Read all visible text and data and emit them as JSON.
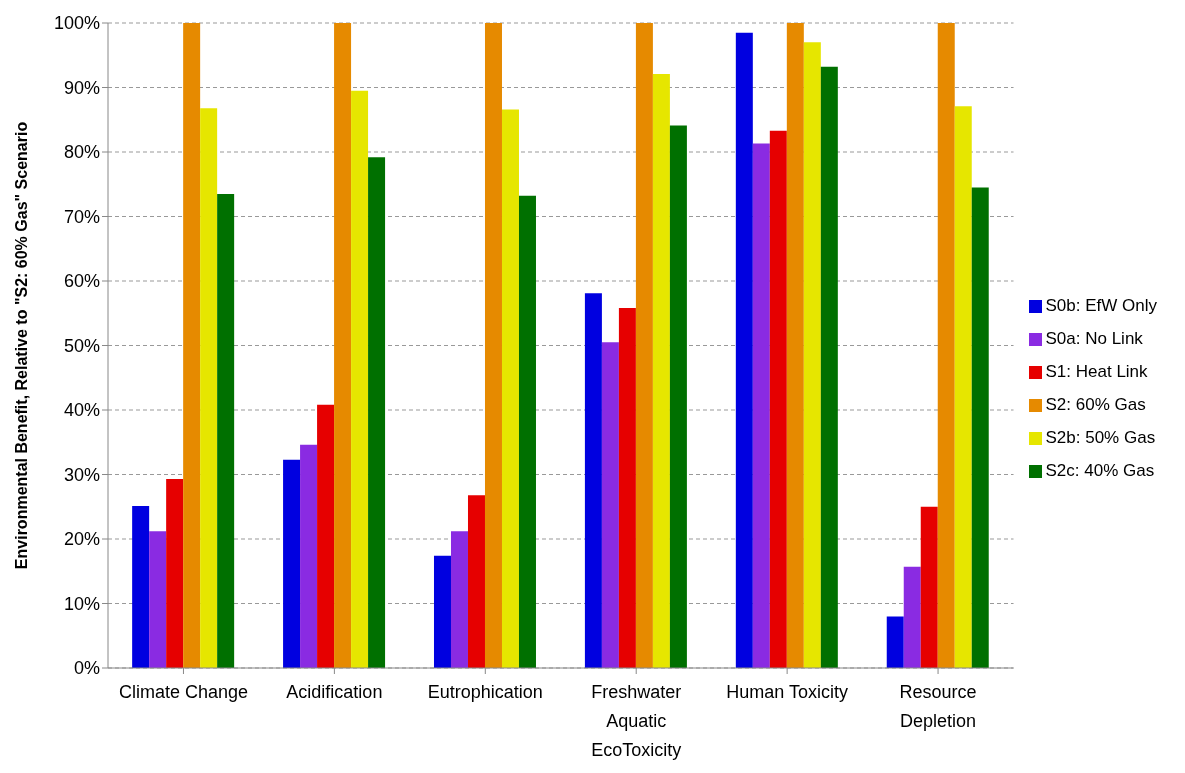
{
  "chart_data": {
    "type": "bar",
    "ylabel": "Environmental Benefit, Relative to \"S2: 60% Gas\" Scenario",
    "categories": [
      "Climate Change",
      "Acidification",
      "Eutrophication",
      "Freshwater Aquatic EcoToxicity",
      "Human Toxicity",
      "Resource Depletion"
    ],
    "series": [
      {
        "name": "S0b: EfW Only",
        "color": "#0000e0",
        "values": [
          25.1,
          32.3,
          17.4,
          58.1,
          98.5,
          8
        ]
      },
      {
        "name": "S0a: No Link",
        "color": "#8a2be2",
        "values": [
          21.2,
          34.6,
          21.2,
          50.5,
          81.3,
          15.7
        ]
      },
      {
        "name": "S1: Heat Link",
        "color": "#e60000",
        "values": [
          29.3,
          40.8,
          26.8,
          55.8,
          83.3,
          25
        ]
      },
      {
        "name": "S2: 60% Gas",
        "color": "#e68a00",
        "values": [
          100,
          100,
          100,
          100,
          100,
          100
        ]
      },
      {
        "name": "S2b: 50% Gas",
        "color": "#e6e600",
        "values": [
          86.8,
          89.5,
          86.6,
          92.1,
          97,
          87.1
        ]
      },
      {
        "name": "S2c: 40% Gas",
        "color": "#007000",
        "values": [
          73.5,
          79.2,
          73.2,
          84.1,
          93.2,
          74.5
        ]
      }
    ],
    "ylim": [
      0,
      100
    ],
    "yticks": [
      {
        "value": 0,
        "label": "0%"
      },
      {
        "value": 10,
        "label": "10%"
      },
      {
        "value": 20,
        "label": "20%"
      },
      {
        "value": 30,
        "label": "30%"
      },
      {
        "value": 40,
        "label": "40%"
      },
      {
        "value": 50,
        "label": "50%"
      },
      {
        "value": 60,
        "label": "60%"
      },
      {
        "value": 70,
        "label": "70%"
      },
      {
        "value": 80,
        "label": "80%"
      },
      {
        "value": 90,
        "label": "90%"
      },
      {
        "value": 100,
        "label": "100%"
      }
    ],
    "grid": "y",
    "legend": "right"
  }
}
